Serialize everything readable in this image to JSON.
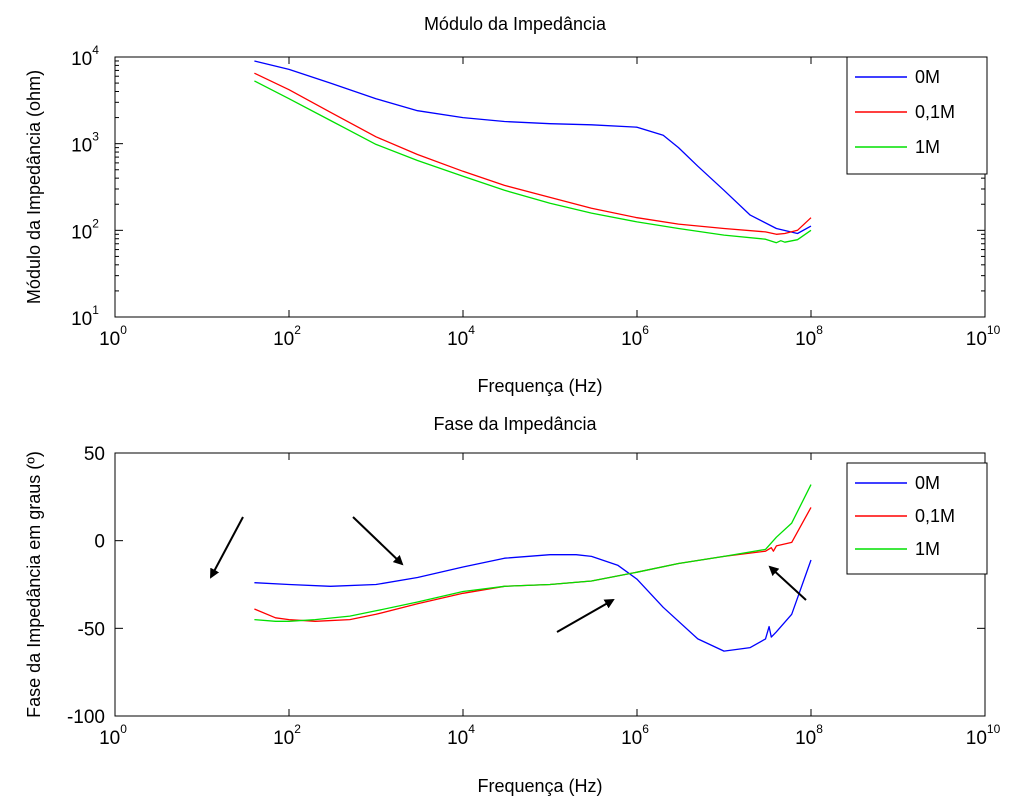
{
  "chart_data": [
    {
      "type": "line",
      "title": "Módulo da Impedância",
      "xlabel": "Frequença (Hz)",
      "ylabel": "Módulo da Impedância (ohm)",
      "xscale": "log",
      "yscale": "log",
      "xlim": [
        1,
        10000000000
      ],
      "ylim": [
        10,
        10000
      ],
      "x_ticks": [
        {
          "base": "10",
          "exp": "0",
          "value": 1
        },
        {
          "base": "10",
          "exp": "2",
          "value": 100
        },
        {
          "base": "10",
          "exp": "4",
          "value": 10000
        },
        {
          "base": "10",
          "exp": "6",
          "value": 1000000
        },
        {
          "base": "10",
          "exp": "8",
          "value": 100000000
        },
        {
          "base": "10",
          "exp": "10",
          "value": 10000000000
        }
      ],
      "y_ticks": [
        {
          "base": "10",
          "exp": "1",
          "value": 10
        },
        {
          "base": "10",
          "exp": "2",
          "value": 100
        },
        {
          "base": "10",
          "exp": "3",
          "value": 1000
        },
        {
          "base": "10",
          "exp": "4",
          "value": 10000
        }
      ],
      "grid": false,
      "legend_position": "top-right",
      "series": [
        {
          "name": "0M",
          "color": "#0000ff",
          "x": [
            40,
            100,
            300,
            1000,
            3000,
            10000,
            30000,
            100000,
            300000,
            1000000,
            2000000,
            3000000,
            5000000,
            10000000,
            20000000,
            40000000,
            70000000,
            100000000
          ],
          "y": [
            9000,
            7200,
            5000,
            3300,
            2400,
            2000,
            1800,
            1700,
            1650,
            1550,
            1250,
            900,
            550,
            290,
            150,
            105,
            92,
            112
          ]
        },
        {
          "name": "0,1M",
          "color": "#ff0000",
          "x": [
            40,
            100,
            300,
            1000,
            3000,
            10000,
            30000,
            100000,
            300000,
            1000000,
            3000000,
            10000000,
            30000000,
            40000000,
            50000000,
            70000000,
            100000000
          ],
          "y": [
            6500,
            4200,
            2300,
            1200,
            750,
            480,
            330,
            240,
            180,
            140,
            118,
            105,
            96,
            90,
            92,
            100,
            140
          ]
        },
        {
          "name": "1M",
          "color": "#00e000",
          "x": [
            40,
            100,
            300,
            1000,
            3000,
            10000,
            30000,
            100000,
            300000,
            1000000,
            3000000,
            10000000,
            30000000,
            40000000,
            45000000,
            50000000,
            70000000,
            100000000
          ],
          "y": [
            5300,
            3300,
            1850,
            980,
            640,
            420,
            290,
            205,
            158,
            125,
            105,
            88,
            79,
            72,
            76,
            73,
            78,
            100
          ]
        }
      ]
    },
    {
      "type": "line",
      "title": "Fase da Impedância",
      "xlabel": "Frequença (Hz)",
      "ylabel": "Fase da Impedância em graus (º)",
      "xscale": "log",
      "xlim": [
        1,
        10000000000
      ],
      "ylim": [
        -100,
        50
      ],
      "x_ticks": [
        {
          "base": "10",
          "exp": "0",
          "value": 1
        },
        {
          "base": "10",
          "exp": "2",
          "value": 100
        },
        {
          "base": "10",
          "exp": "4",
          "value": 10000
        },
        {
          "base": "10",
          "exp": "6",
          "value": 1000000
        },
        {
          "base": "10",
          "exp": "8",
          "value": 100000000
        },
        {
          "base": "10",
          "exp": "10",
          "value": 10000000000
        }
      ],
      "y_ticks": [
        {
          "label": "50",
          "value": 50
        },
        {
          "label": "0",
          "value": 0
        },
        {
          "label": "-50",
          "value": -50
        },
        {
          "label": "-100",
          "value": -100
        }
      ],
      "grid": false,
      "legend_position": "top-right",
      "series": [
        {
          "name": "0M",
          "color": "#0000ff",
          "x": [
            40,
            100,
            300,
            1000,
            3000,
            10000,
            30000,
            100000,
            200000,
            300000,
            600000,
            1000000,
            2000000,
            5000000,
            10000000,
            20000000,
            30000000,
            33000000,
            35000000,
            40000000,
            60000000,
            100000000
          ],
          "y": [
            -24,
            -25,
            -26,
            -25,
            -21,
            -15,
            -10,
            -8,
            -8,
            -9,
            -14,
            -22,
            -38,
            -56,
            -63,
            -61,
            -56,
            -49,
            -55,
            -52,
            -42,
            -11
          ]
        },
        {
          "name": "0,1M",
          "color": "#ff0000",
          "x": [
            40,
            70,
            100,
            200,
            500,
            1000,
            3000,
            10000,
            30000,
            100000,
            300000,
            1000000,
            3000000,
            10000000,
            30000000,
            35000000,
            37000000,
            40000000,
            60000000,
            100000000
          ],
          "y": [
            -39,
            -44,
            -45,
            -46,
            -45,
            -42,
            -36,
            -30,
            -26,
            -25,
            -23,
            -18,
            -13,
            -9,
            -6,
            -4,
            -6,
            -3,
            -1,
            19
          ]
        },
        {
          "name": "1M",
          "color": "#00e000",
          "x": [
            40,
            70,
            100,
            200,
            500,
            1000,
            3000,
            10000,
            30000,
            100000,
            300000,
            1000000,
            3000000,
            10000000,
            30000000,
            40000000,
            60000000,
            100000000
          ],
          "y": [
            -45,
            -46,
            -46,
            -45,
            -43,
            -40,
            -35,
            -29,
            -26,
            -25,
            -23,
            -18,
            -13,
            -9,
            -5,
            2,
            10,
            32
          ]
        }
      ]
    }
  ]
}
